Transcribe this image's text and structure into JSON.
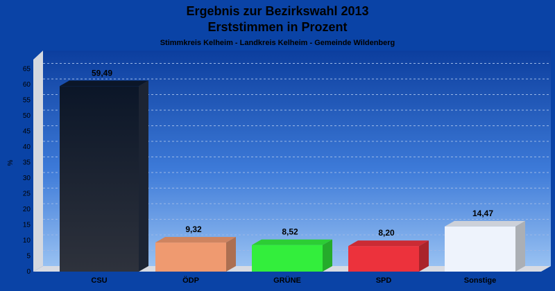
{
  "chart_data": {
    "type": "bar",
    "title_line1": "Ergebnis zur Bezirkswahl 2013",
    "title_line2": "Erststimmen in Prozent",
    "subtitle": "Stimmkreis Kelheim - Landkreis Kelheim - Gemeinde Wildenberg",
    "ylabel": "%",
    "xlabel": "",
    "ylim": [
      0,
      68
    ],
    "yticks": [
      0,
      5,
      10,
      15,
      20,
      25,
      30,
      35,
      40,
      45,
      50,
      55,
      60,
      65
    ],
    "grid": true,
    "categories": [
      "CSU",
      "ÖDP",
      "GRÜNE",
      "SPD",
      "Sonstige"
    ],
    "values": [
      59.49,
      9.32,
      8.52,
      8.2,
      14.47
    ],
    "value_labels": [
      "59,49",
      "9,32",
      "8,52",
      "8,20",
      "14,47"
    ],
    "colors": [
      "#141c2c",
      "#ef9a70",
      "#33ee3c",
      "#ec323c",
      "#eef3fc"
    ]
  }
}
